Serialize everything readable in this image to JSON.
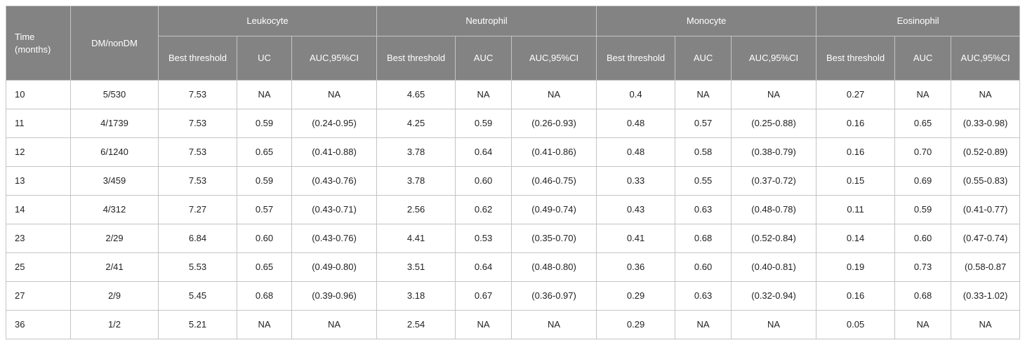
{
  "header": {
    "time": "Time (months)",
    "dm": "DM/nonDM",
    "groups": [
      "Leukocyte",
      "Neutrophil",
      "Monocyte",
      "Eosinophil"
    ],
    "sub": [
      [
        "Best threshold",
        "UC",
        "AUC,95%CI"
      ],
      [
        "Best threshold",
        "AUC",
        "AUC,95%CI"
      ],
      [
        "Best threshold",
        "AUC",
        "AUC,95%CI"
      ],
      [
        "Best threshold",
        "AUC",
        "AUC,95%CI"
      ]
    ]
  },
  "rows": [
    [
      "10",
      "5/530",
      "7.53",
      "NA",
      "NA",
      "4.65",
      "NA",
      "NA",
      "0.4",
      "NA",
      "NA",
      "0.27",
      "NA",
      "NA"
    ],
    [
      "11",
      "4/1739",
      "7.53",
      "0.59",
      "(0.24-0.95)",
      "4.25",
      "0.59",
      "(0.26-0.93)",
      "0.48",
      "0.57",
      "(0.25-0.88)",
      "0.16",
      "0.65",
      "(0.33-0.98)"
    ],
    [
      "12",
      "6/1240",
      "7.53",
      "0.65",
      "(0.41-0.88)",
      "3.78",
      "0.64",
      "(0.41-0.86)",
      "0.48",
      "0.58",
      "(0.38-0.79)",
      "0.16",
      "0.70",
      "(0.52-0.89)"
    ],
    [
      "13",
      "3/459",
      "7.53",
      "0.59",
      "(0.43-0.76)",
      "3.78",
      "0.60",
      "(0.46-0.75)",
      "0.33",
      "0.55",
      "(0.37-0.72)",
      "0.15",
      "0.69",
      "(0.55-0.83)"
    ],
    [
      "14",
      "4/312",
      "7.27",
      "0.57",
      "(0.43-0.71)",
      "2.56",
      "0.62",
      "(0.49-0.74)",
      "0.43",
      "0.63",
      "(0.48-0.78)",
      "0.11",
      "0.59",
      "(0.41-0.77)"
    ],
    [
      "23",
      "2/29",
      "6.84",
      "0.60",
      "(0.43-0.76)",
      "4.41",
      "0.53",
      "(0.35-0.70)",
      "0.41",
      "0.68",
      "(0.52-0.84)",
      "0.14",
      "0.60",
      "(0.47-0.74)"
    ],
    [
      "25",
      "2/41",
      "5.53",
      "0.65",
      "(0.49-0.80)",
      "3.51",
      "0.64",
      "(0.48-0.80)",
      "0.36",
      "0.60",
      "(0.40-0.81)",
      "0.19",
      "0.73",
      "(0.58-0.87"
    ],
    [
      "27",
      "2/9",
      "5.45",
      "0.68",
      "(0.39-0.96)",
      "3.18",
      "0.67",
      "(0.36-0.97)",
      "0.29",
      "0.63",
      "(0.32-0.94)",
      "0.16",
      "0.68",
      "(0.33-1.02)"
    ],
    [
      "36",
      "1/2",
      "5.21",
      "NA",
      "NA",
      "2.54",
      "NA",
      "NA",
      "0.29",
      "NA",
      "NA",
      "0.05",
      "NA",
      "NA"
    ]
  ]
}
